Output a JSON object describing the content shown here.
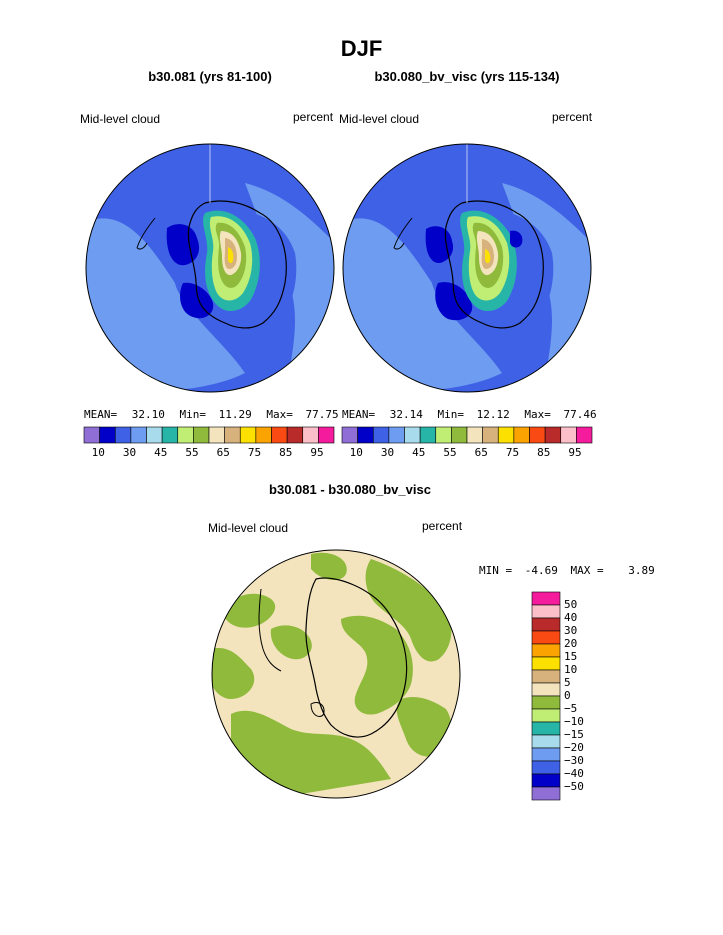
{
  "page": {
    "title": "DJF"
  },
  "colors": {
    "full_palette": [
      "#8f6fd6",
      "#0000c8",
      "#3f61e6",
      "#6e9cf0",
      "#a8dcec",
      "#27b5a8",
      "#c0ee74",
      "#8fba3c",
      "#f3e4bd",
      "#d7b27d",
      "#fbe000",
      "#fba300",
      "#f84a12",
      "#b92a2a",
      "#fbbfc9",
      "#f41c9c"
    ],
    "land_outline": "#000000",
    "sea_deep": "#3f61e6",
    "sea_light": "#6e9cf0"
  },
  "panels": [
    {
      "subtitle": "b30.081 (yrs 81-100)",
      "left_label": "Mid-level cloud",
      "right_label": "percent",
      "stats": {
        "mean_label": "MEAN=",
        "mean": "32.10",
        "min_label": "Min=",
        "min": "11.29",
        "max_label": "Max=",
        "max": "77.75"
      },
      "colorbar_ticks": [
        "10",
        "30",
        "45",
        "55",
        "65",
        "75",
        "85",
        "95"
      ]
    },
    {
      "subtitle": "b30.080_bv_visc (yrs 115-134)",
      "left_label": "Mid-level cloud",
      "right_label": "percent",
      "stats": {
        "mean_label": "MEAN=",
        "mean": "32.14",
        "min_label": "Min=",
        "min": "12.12",
        "max_label": "Max=",
        "max": "77.46"
      },
      "colorbar_ticks": [
        "10",
        "30",
        "45",
        "55",
        "65",
        "75",
        "85",
        "95"
      ]
    }
  ],
  "diff_panel": {
    "subtitle": "b30.081 - b30.080_bv_visc",
    "left_label": "Mid-level cloud",
    "right_label": "percent",
    "stats": {
      "min_label": "MIN =",
      "min": "-4.69",
      "max_label": "MAX =",
      "max": "3.89"
    },
    "colorbar_labels": [
      "50",
      "40",
      "30",
      "20",
      "15",
      "10",
      "5",
      "0",
      "−5",
      "−10",
      "−15",
      "−20",
      "−30",
      "−40",
      "−50"
    ],
    "colors": [
      "#f41c9c",
      "#fbbfc9",
      "#b92a2a",
      "#f84a12",
      "#fba300",
      "#fbe000",
      "#d7b27d",
      "#f3e4bd",
      "#8fba3c",
      "#c0ee74",
      "#27b5a8",
      "#a8dcec",
      "#6e9cf0",
      "#3f61e6",
      "#0000c8",
      "#8f6fd6"
    ],
    "fill_primary": "#f3e4bd",
    "fill_secondary": "#8fba3c"
  }
}
